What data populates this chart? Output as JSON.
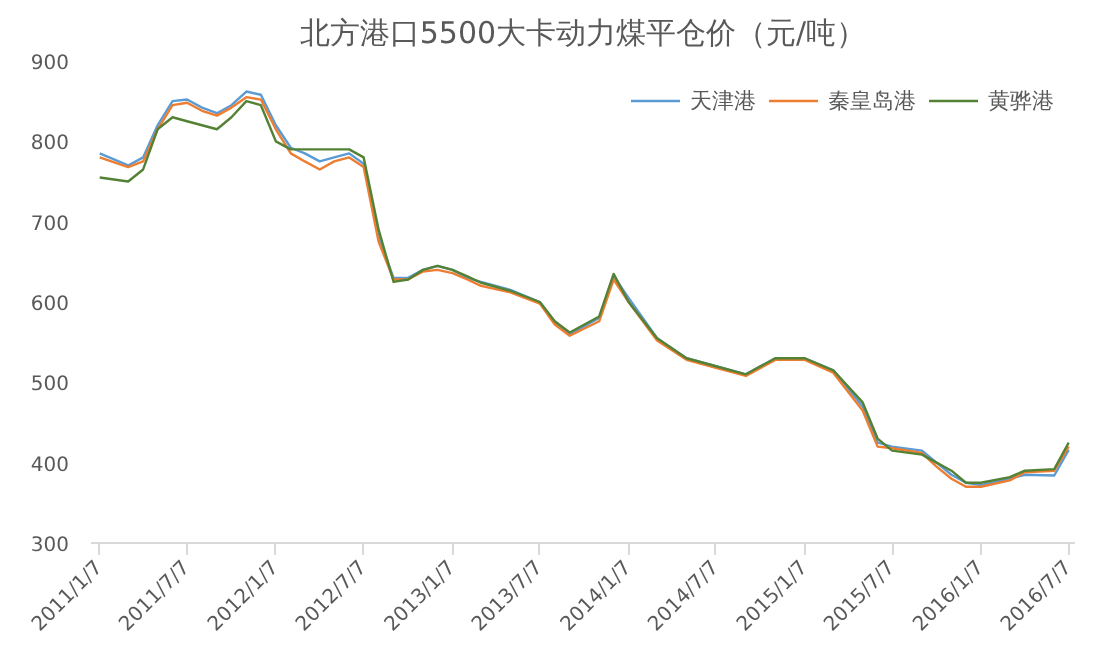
{
  "chart_data": {
    "type": "line",
    "title": "北方港口5500大卡动力煤平仓价（元/吨）",
    "x": [
      "2011-01-07",
      "2011-03-07",
      "2011-04-07",
      "2011-05-07",
      "2011-06-07",
      "2011-07-07",
      "2011-08-07",
      "2011-09-07",
      "2011-10-07",
      "2011-11-07",
      "2011-12-07",
      "2012-01-07",
      "2012-02-07",
      "2012-03-07",
      "2012-04-07",
      "2012-05-07",
      "2012-06-07",
      "2012-07-07",
      "2012-08-07",
      "2012-09-07",
      "2012-10-07",
      "2012-11-07",
      "2012-12-07",
      "2013-01-07",
      "2013-02-07",
      "2013-03-07",
      "2013-05-07",
      "2013-07-07",
      "2013-08-07",
      "2013-09-07",
      "2013-11-07",
      "2013-12-07",
      "2014-01-07",
      "2014-03-07",
      "2014-05-07",
      "2014-07-07",
      "2014-09-07",
      "2014-11-07",
      "2015-01-07",
      "2015-03-07",
      "2015-05-07",
      "2015-06-07",
      "2015-07-07",
      "2015-09-07",
      "2015-10-07",
      "2015-11-07",
      "2015-12-07",
      "2016-01-07",
      "2016-03-07",
      "2016-04-07",
      "2016-06-07",
      "2016-07-07"
    ],
    "series": [
      {
        "name": "天津港",
        "color": "#5b9bd5",
        "values": [
          785,
          770,
          780,
          820,
          850,
          852,
          842,
          835,
          845,
          862,
          858,
          820,
          792,
          785,
          775,
          780,
          785,
          772,
          680,
          630,
          630,
          640,
          645,
          640,
          630,
          625,
          615,
          600,
          575,
          560,
          580,
          632,
          605,
          555,
          530,
          520,
          510,
          530,
          530,
          515,
          470,
          425,
          420,
          415,
          400,
          385,
          375,
          372,
          380,
          385,
          384,
          416
        ]
      },
      {
        "name": "秦皇岛港",
        "color": "#ed7d31",
        "values": [
          780,
          768,
          775,
          815,
          845,
          848,
          838,
          832,
          842,
          855,
          852,
          815,
          785,
          775,
          765,
          775,
          780,
          768,
          675,
          628,
          628,
          638,
          640,
          636,
          628,
          620,
          612,
          598,
          572,
          558,
          576,
          628,
          600,
          552,
          528,
          518,
          508,
          528,
          528,
          512,
          465,
          420,
          418,
          412,
          395,
          380,
          370,
          370,
          378,
          388,
          390,
          420
        ]
      },
      {
        "name": "黄骅港",
        "color": "#548235",
        "values": [
          755,
          750,
          765,
          815,
          830,
          825,
          820,
          815,
          830,
          850,
          845,
          800,
          790,
          790,
          790,
          790,
          790,
          780,
          690,
          625,
          628,
          640,
          645,
          640,
          632,
          624,
          614,
          600,
          576,
          562,
          582,
          635,
          600,
          555,
          530,
          520,
          510,
          530,
          530,
          515,
          475,
          430,
          415,
          410,
          400,
          390,
          375,
          375,
          382,
          390,
          392,
          425
        ]
      }
    ],
    "ylim": [
      300,
      900
    ],
    "yticks": [
      300,
      400,
      500,
      600,
      700,
      800,
      900
    ],
    "xlim": [
      "2010-12-20",
      "2016-07-20"
    ],
    "xticks": [
      {
        "value": "2011-01-07",
        "label": "2011/1/7"
      },
      {
        "value": "2011-07-07",
        "label": "2011/7/7"
      },
      {
        "value": "2012-01-07",
        "label": "2012/1/7"
      },
      {
        "value": "2012-07-07",
        "label": "2012/7/7"
      },
      {
        "value": "2013-01-07",
        "label": "2013/1/7"
      },
      {
        "value": "2013-07-07",
        "label": "2013/7/7"
      },
      {
        "value": "2014-01-07",
        "label": "2014/1/7"
      },
      {
        "value": "2014-07-07",
        "label": "2014/7/7"
      },
      {
        "value": "2015-01-07",
        "label": "2015/1/7"
      },
      {
        "value": "2015-07-07",
        "label": "2015/7/7"
      },
      {
        "value": "2016-01-07",
        "label": "2016/1/7"
      },
      {
        "value": "2016-07-07",
        "label": "2016/7/7"
      }
    ],
    "grid": false,
    "legend": "top right",
    "marker": "none",
    "line_style": "solid"
  }
}
